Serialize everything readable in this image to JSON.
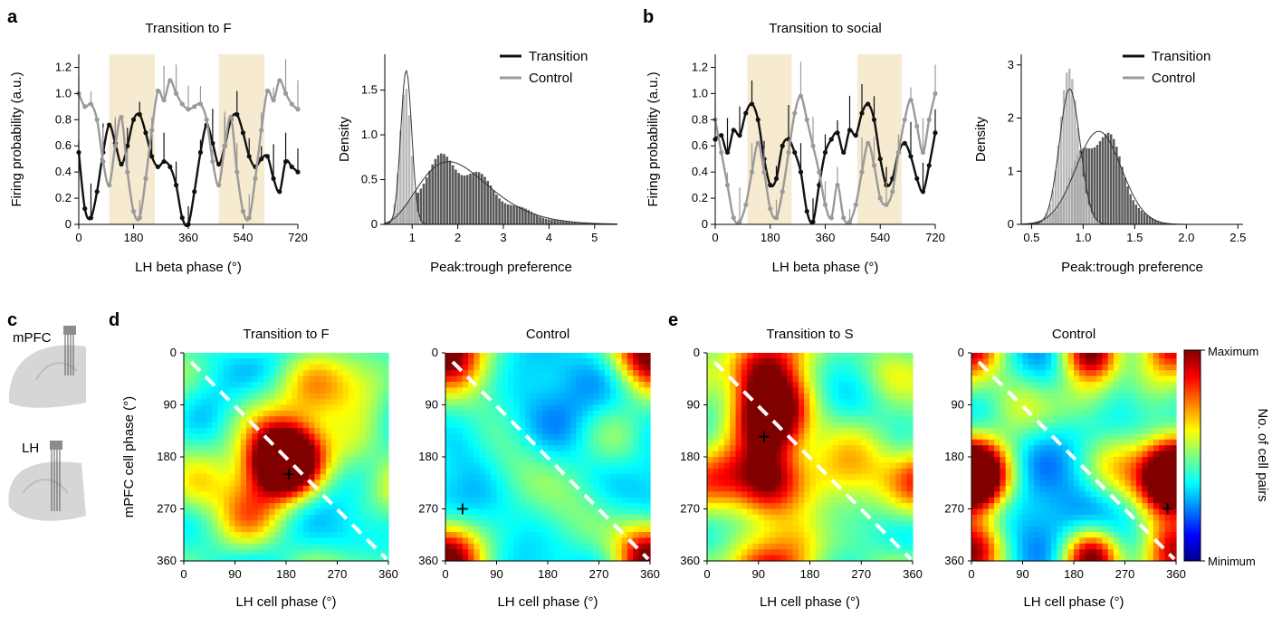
{
  "panel_letters": [
    "a",
    "b",
    "c",
    "d",
    "e"
  ],
  "brain": {
    "top_label": "mPFC",
    "bottom_label": "LH"
  },
  "colors": {
    "dark": "#111111",
    "gray": "#9a9a9a",
    "light_gray": "#b4b4b4",
    "dark_bar": "#4a4a4a",
    "shade": "#f6ead1",
    "dash": "#ffffff"
  },
  "colorbar": {
    "top_label": "Maximum",
    "bottom_label": "Minimum",
    "title": "No. of cell pairs",
    "colormap": "jet"
  },
  "chart_data": [
    {
      "type": "line",
      "panel": "a",
      "title": "Transition to F",
      "xlabel": "LH beta phase (°)",
      "ylabel": "Firing probability (a.u.)",
      "xlim": [
        0,
        720
      ],
      "ylim": [
        0,
        1.3
      ],
      "xticks": [
        0,
        180,
        360,
        540,
        720
      ],
      "yticks": [
        0,
        0.2,
        0.4,
        0.6,
        0.8,
        1.0,
        1.2
      ],
      "ytick_labels": [
        "0",
        "0.2",
        "0.4",
        "0.6",
        "0.8",
        "1.0",
        "1.2"
      ],
      "shaded_x": [
        [
          100,
          250
        ],
        [
          460,
          610
        ]
      ],
      "series": [
        {
          "color": "dark",
          "x": [
            0,
            20,
            40,
            60,
            80,
            100,
            120,
            140,
            160,
            180,
            200,
            220,
            240,
            260,
            280,
            300,
            320,
            340,
            360,
            380,
            400,
            420,
            440,
            460,
            480,
            500,
            520,
            540,
            560,
            580,
            600,
            620,
            640,
            660,
            680,
            700,
            720
          ],
          "values": [
            0.55,
            0.12,
            0.05,
            0.25,
            0.55,
            0.76,
            0.62,
            0.46,
            0.6,
            0.8,
            0.84,
            0.7,
            0.52,
            0.44,
            0.48,
            0.44,
            0.3,
            0.05,
            0.0,
            0.25,
            0.55,
            0.76,
            0.62,
            0.46,
            0.6,
            0.8,
            0.84,
            0.7,
            0.52,
            0.44,
            0.5,
            0.52,
            0.35,
            0.25,
            0.48,
            0.44,
            0.4
          ]
        },
        {
          "color": "gray",
          "x": [
            0,
            20,
            40,
            60,
            80,
            100,
            120,
            140,
            160,
            180,
            200,
            220,
            240,
            260,
            280,
            300,
            320,
            340,
            360,
            380,
            400,
            420,
            440,
            460,
            480,
            500,
            520,
            540,
            560,
            580,
            600,
            620,
            640,
            660,
            680,
            700,
            720
          ],
          "values": [
            1.0,
            0.9,
            0.92,
            0.8,
            0.48,
            0.3,
            0.6,
            0.82,
            0.4,
            0.1,
            0.05,
            0.35,
            0.72,
            1.02,
            0.95,
            1.1,
            1.0,
            0.92,
            0.88,
            0.9,
            0.92,
            0.8,
            0.48,
            0.3,
            0.6,
            0.82,
            0.4,
            0.1,
            0.05,
            0.35,
            0.72,
            1.02,
            0.95,
            1.1,
            1.0,
            0.92,
            0.88
          ]
        }
      ]
    },
    {
      "type": "bar",
      "panel": "a",
      "xlabel": "Peak:trough preference",
      "ylabel": "Density",
      "xlim": [
        0.4,
        5.5
      ],
      "ylim": [
        0,
        1.9
      ],
      "xticks": [
        1,
        2,
        3,
        4,
        5
      ],
      "yticks": [
        0,
        0.5,
        1.0,
        1.5
      ],
      "ytick_labels": [
        "0",
        "0.5",
        "1.0",
        "1.5"
      ],
      "series": [
        {
          "name": "Transition",
          "color": "dark_bar",
          "dist": "gamma",
          "shape": 6.5,
          "mode": 1.8,
          "peak": 0.7
        },
        {
          "name": "Control",
          "color": "light_gray",
          "dist": "normal",
          "mean": 0.87,
          "sd": 0.12,
          "peak": 1.72
        }
      ]
    },
    {
      "type": "line",
      "panel": "b",
      "title": "Transition to social",
      "xlabel": "LH beta phase (°)",
      "ylabel": "Firing probability (a.u.)",
      "xlim": [
        0,
        720
      ],
      "ylim": [
        0,
        1.3
      ],
      "xticks": [
        0,
        180,
        360,
        540,
        720
      ],
      "yticks": [
        0,
        0.2,
        0.4,
        0.6,
        0.8,
        1.0,
        1.2
      ],
      "ytick_labels": [
        "0",
        "0.2",
        "0.4",
        "0.6",
        "0.8",
        "1.0",
        "1.2"
      ],
      "shaded_x": [
        [
          105,
          250
        ],
        [
          465,
          610
        ]
      ],
      "series": [
        {
          "color": "dark",
          "x": [
            0,
            20,
            40,
            60,
            80,
            100,
            120,
            140,
            160,
            180,
            200,
            220,
            240,
            260,
            280,
            300,
            320,
            340,
            360,
            380,
            400,
            420,
            440,
            460,
            480,
            500,
            520,
            540,
            560,
            580,
            600,
            620,
            640,
            660,
            680,
            700,
            720
          ],
          "values": [
            0.65,
            0.68,
            0.55,
            0.72,
            0.68,
            0.85,
            0.92,
            0.8,
            0.5,
            0.3,
            0.35,
            0.6,
            0.65,
            0.55,
            0.4,
            0.1,
            0.02,
            0.3,
            0.55,
            0.65,
            0.7,
            0.55,
            0.72,
            0.68,
            0.85,
            0.92,
            0.8,
            0.5,
            0.3,
            0.35,
            0.55,
            0.62,
            0.52,
            0.35,
            0.25,
            0.45,
            0.7
          ]
        },
        {
          "color": "gray",
          "x": [
            0,
            20,
            40,
            60,
            80,
            100,
            120,
            140,
            160,
            180,
            200,
            220,
            240,
            260,
            280,
            300,
            320,
            340,
            360,
            380,
            400,
            420,
            440,
            460,
            480,
            500,
            520,
            540,
            560,
            580,
            600,
            620,
            640,
            660,
            680,
            700,
            720
          ],
          "values": [
            0.8,
            0.55,
            0.3,
            0.05,
            0.02,
            0.15,
            0.4,
            0.62,
            0.4,
            0.12,
            0.05,
            0.25,
            0.55,
            0.85,
            0.98,
            0.8,
            0.6,
            0.4,
            0.15,
            0.05,
            0.3,
            0.05,
            0.02,
            0.15,
            0.4,
            0.62,
            0.45,
            0.2,
            0.15,
            0.25,
            0.55,
            0.8,
            0.95,
            0.75,
            0.55,
            0.8,
            1.0
          ]
        }
      ]
    },
    {
      "type": "bar",
      "panel": "b",
      "xlabel": "Peak:trough preference",
      "ylabel": "Density",
      "xlim": [
        0.4,
        2.55
      ],
      "ylim": [
        0,
        3.2
      ],
      "xticks": [
        0.5,
        1.0,
        1.5,
        2.0,
        2.5
      ],
      "xtick_labels": [
        "0.5",
        "1.0",
        "1.5",
        "2.0",
        "2.5"
      ],
      "yticks": [
        0,
        1,
        2,
        3
      ],
      "ytick_labels": [
        "0",
        "1",
        "2",
        "3"
      ],
      "series": [
        {
          "name": "Transition",
          "color": "dark_bar",
          "dist": "normal",
          "mean": 1.15,
          "sd": 0.22,
          "peak": 1.75
        },
        {
          "name": "Control",
          "color": "light_gray",
          "dist": "normal",
          "mean": 0.87,
          "sd": 0.1,
          "peak": 2.55
        }
      ]
    },
    {
      "type": "heatmap",
      "panel": "d",
      "title": "Transition to F",
      "xlabel": "LH cell phase (°)",
      "ylabel": "mPFC cell phase (°)",
      "xlim": [
        0,
        360
      ],
      "ylim": [
        0,
        360
      ],
      "xticks": [
        0,
        90,
        180,
        270,
        360
      ],
      "yticks": [
        0,
        90,
        180,
        270,
        360
      ],
      "marker": [
        185,
        210
      ],
      "diagonal": true,
      "blobs": [
        [
          180,
          190,
          1.0,
          40
        ],
        [
          160,
          170,
          0.55,
          60
        ],
        [
          110,
          290,
          0.45,
          45
        ],
        [
          230,
          60,
          0.4,
          45
        ],
        [
          20,
          230,
          0.35,
          40
        ],
        [
          320,
          40,
          0.3,
          50
        ],
        [
          300,
          160,
          0.25,
          40
        ]
      ],
      "base": 0.35
    },
    {
      "type": "heatmap",
      "panel": "d",
      "title": "Control",
      "xlabel": "LH cell phase (°)",
      "ylabel": "",
      "xlim": [
        0,
        360
      ],
      "ylim": [
        0,
        360
      ],
      "xticks": [
        0,
        90,
        180,
        270,
        360
      ],
      "yticks": [
        0,
        90,
        180,
        270,
        360
      ],
      "marker": [
        30,
        270
      ],
      "diagonal": true,
      "blobs": [
        [
          0,
          355,
          0.9,
          45
        ],
        [
          220,
          280,
          0.3,
          60
        ],
        [
          60,
          60,
          0.25,
          60
        ],
        [
          300,
          150,
          0.25,
          50
        ],
        [
          120,
          200,
          0.25,
          50
        ]
      ],
      "base": 0.28
    },
    {
      "type": "heatmap",
      "panel": "e",
      "title": "Transition to S",
      "xlabel": "LH cell phase (°)",
      "ylabel": "",
      "xlim": [
        0,
        360
      ],
      "ylim": [
        0,
        360
      ],
      "xticks": [
        0,
        90,
        180,
        270,
        360
      ],
      "yticks": [
        0,
        90,
        180,
        270,
        360
      ],
      "marker": [
        100,
        145
      ],
      "diagonal": true,
      "blobs": [
        [
          110,
          110,
          1.0,
          45
        ],
        [
          100,
          220,
          0.75,
          45
        ],
        [
          100,
          30,
          0.6,
          45
        ],
        [
          10,
          220,
          0.45,
          40
        ],
        [
          250,
          200,
          0.4,
          60
        ],
        [
          160,
          330,
          0.35,
          40
        ],
        [
          330,
          30,
          0.3,
          40
        ]
      ],
      "base": 0.4
    },
    {
      "type": "heatmap",
      "panel": "e",
      "title": "Control",
      "xlabel": "LH cell phase (°)",
      "ylabel": "",
      "xlim": [
        0,
        360
      ],
      "ylim": [
        0,
        360
      ],
      "xticks": [
        0,
        90,
        180,
        270,
        360
      ],
      "yticks": [
        0,
        90,
        180,
        270,
        360
      ],
      "marker": [
        345,
        270
      ],
      "diagonal": true,
      "blobs": [
        [
          0,
          210,
          1.0,
          45
        ],
        [
          0,
          340,
          0.75,
          40
        ],
        [
          210,
          355,
          0.8,
          35
        ],
        [
          360,
          220,
          0.55,
          40
        ],
        [
          260,
          200,
          0.4,
          45
        ],
        [
          80,
          90,
          0.35,
          45
        ],
        [
          200,
          80,
          0.3,
          45
        ],
        [
          320,
          40,
          0.3,
          40
        ]
      ],
      "base": 0.3
    }
  ]
}
